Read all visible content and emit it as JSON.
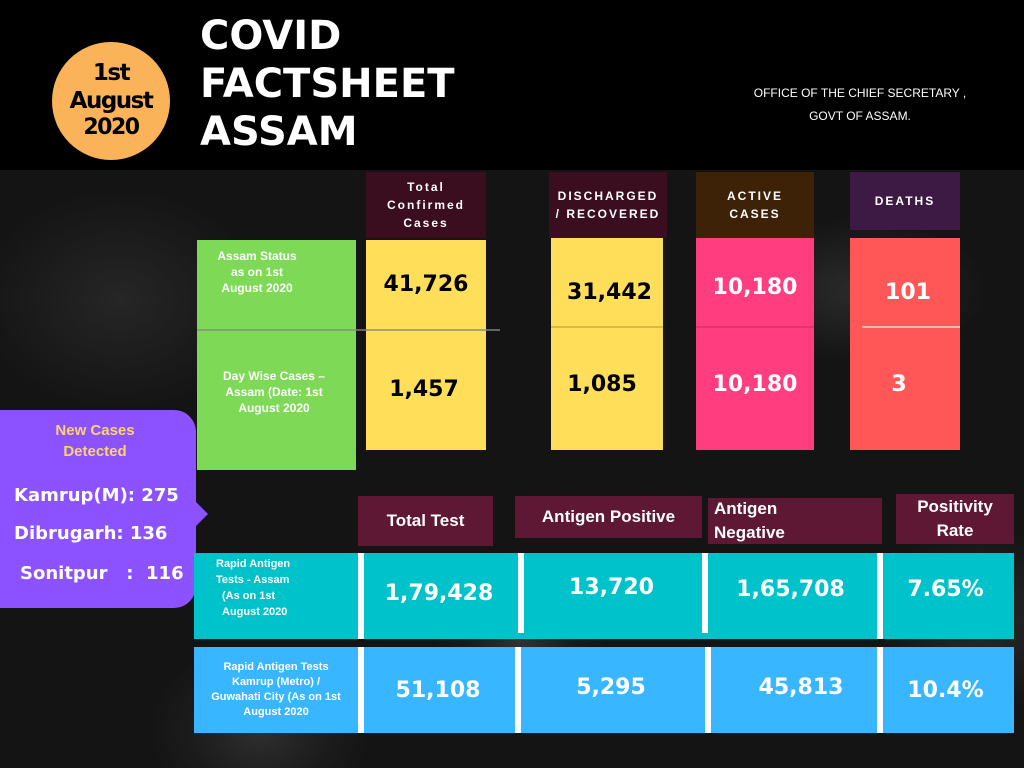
{
  "header": {
    "date": {
      "line1": "1st",
      "line2": "August",
      "line3": "2020"
    },
    "title": {
      "line1": "COVID",
      "line2": "FACTSHEET",
      "line3": "ASSAM"
    },
    "office": {
      "line1": "OFFICE OF THE CHIEF SECRETARY ,",
      "line2": "GOVT OF ASSAM."
    }
  },
  "status_table": {
    "columns": {
      "confirmed": {
        "line1": "Total",
        "line2": "Confirmed",
        "line3": "Cases"
      },
      "discharged": {
        "line1": "DISCHARGED",
        "line2": "/ RECOVERED"
      },
      "active": {
        "line1": "ACTIVE",
        "line2": "CASES"
      },
      "deaths": "DEATHS"
    },
    "rows": {
      "status": {
        "line1": "Assam Status",
        "line2": "as on 1st",
        "line3": "August 2020"
      },
      "daywise": {
        "line1": "Day Wise Cases –",
        "line2": "Assam (Date: 1st",
        "line3": "August 2020"
      }
    },
    "values": {
      "status": {
        "confirmed": "41,726",
        "discharged": "31,442",
        "active": "10,180",
        "deaths": "101"
      },
      "daywise": {
        "confirmed": "1,457",
        "discharged": "1,085",
        "active": "10,180",
        "deaths": "3"
      }
    },
    "colors": {
      "confirmed": "#ffde59",
      "discharged": "#ffde59",
      "active": "#ff3d7f",
      "deaths": "#ff5757",
      "label": "#7ed957"
    }
  },
  "new_cases": {
    "title": {
      "line1": "New Cases",
      "line2": "Detected"
    },
    "items": [
      "Kamrup(M): 275",
      "Dibrugarh: 136",
      "Sonitpur   :  116"
    ]
  },
  "tests_table": {
    "columns": {
      "total_test": "Total Test",
      "antigen_positive": "Antigen Positive",
      "antigen_negative": {
        "line1": "Antigen",
        "line2": "Negative"
      },
      "positivity_rate": {
        "line1": "Positivity",
        "line2": "Rate"
      }
    },
    "rows": {
      "assam": {
        "label": {
          "line1": "Rapid Antigen",
          "line2": "Tests - Assam",
          "line3": "(As on 1st",
          "line4": "August 2020"
        },
        "total_test": "1,79,428",
        "antigen_positive": "13,720",
        "antigen_negative": "1,65,708",
        "positivity_rate": "7.65%"
      },
      "kamrup": {
        "label": {
          "line1": "Rapid Antigen Tests",
          "line2": "Kamrup (Metro) /",
          "line3": "Guwahati City (As on 1st",
          "line4": "August 2020"
        },
        "total_test": "51,108",
        "antigen_positive": "5,295",
        "antigen_negative": "45,813",
        "positivity_rate": "10.4%"
      }
    },
    "colors": {
      "assam_row": "#00c2cb",
      "kamrup_row": "#38b6ff",
      "header": "#5e1833"
    }
  }
}
